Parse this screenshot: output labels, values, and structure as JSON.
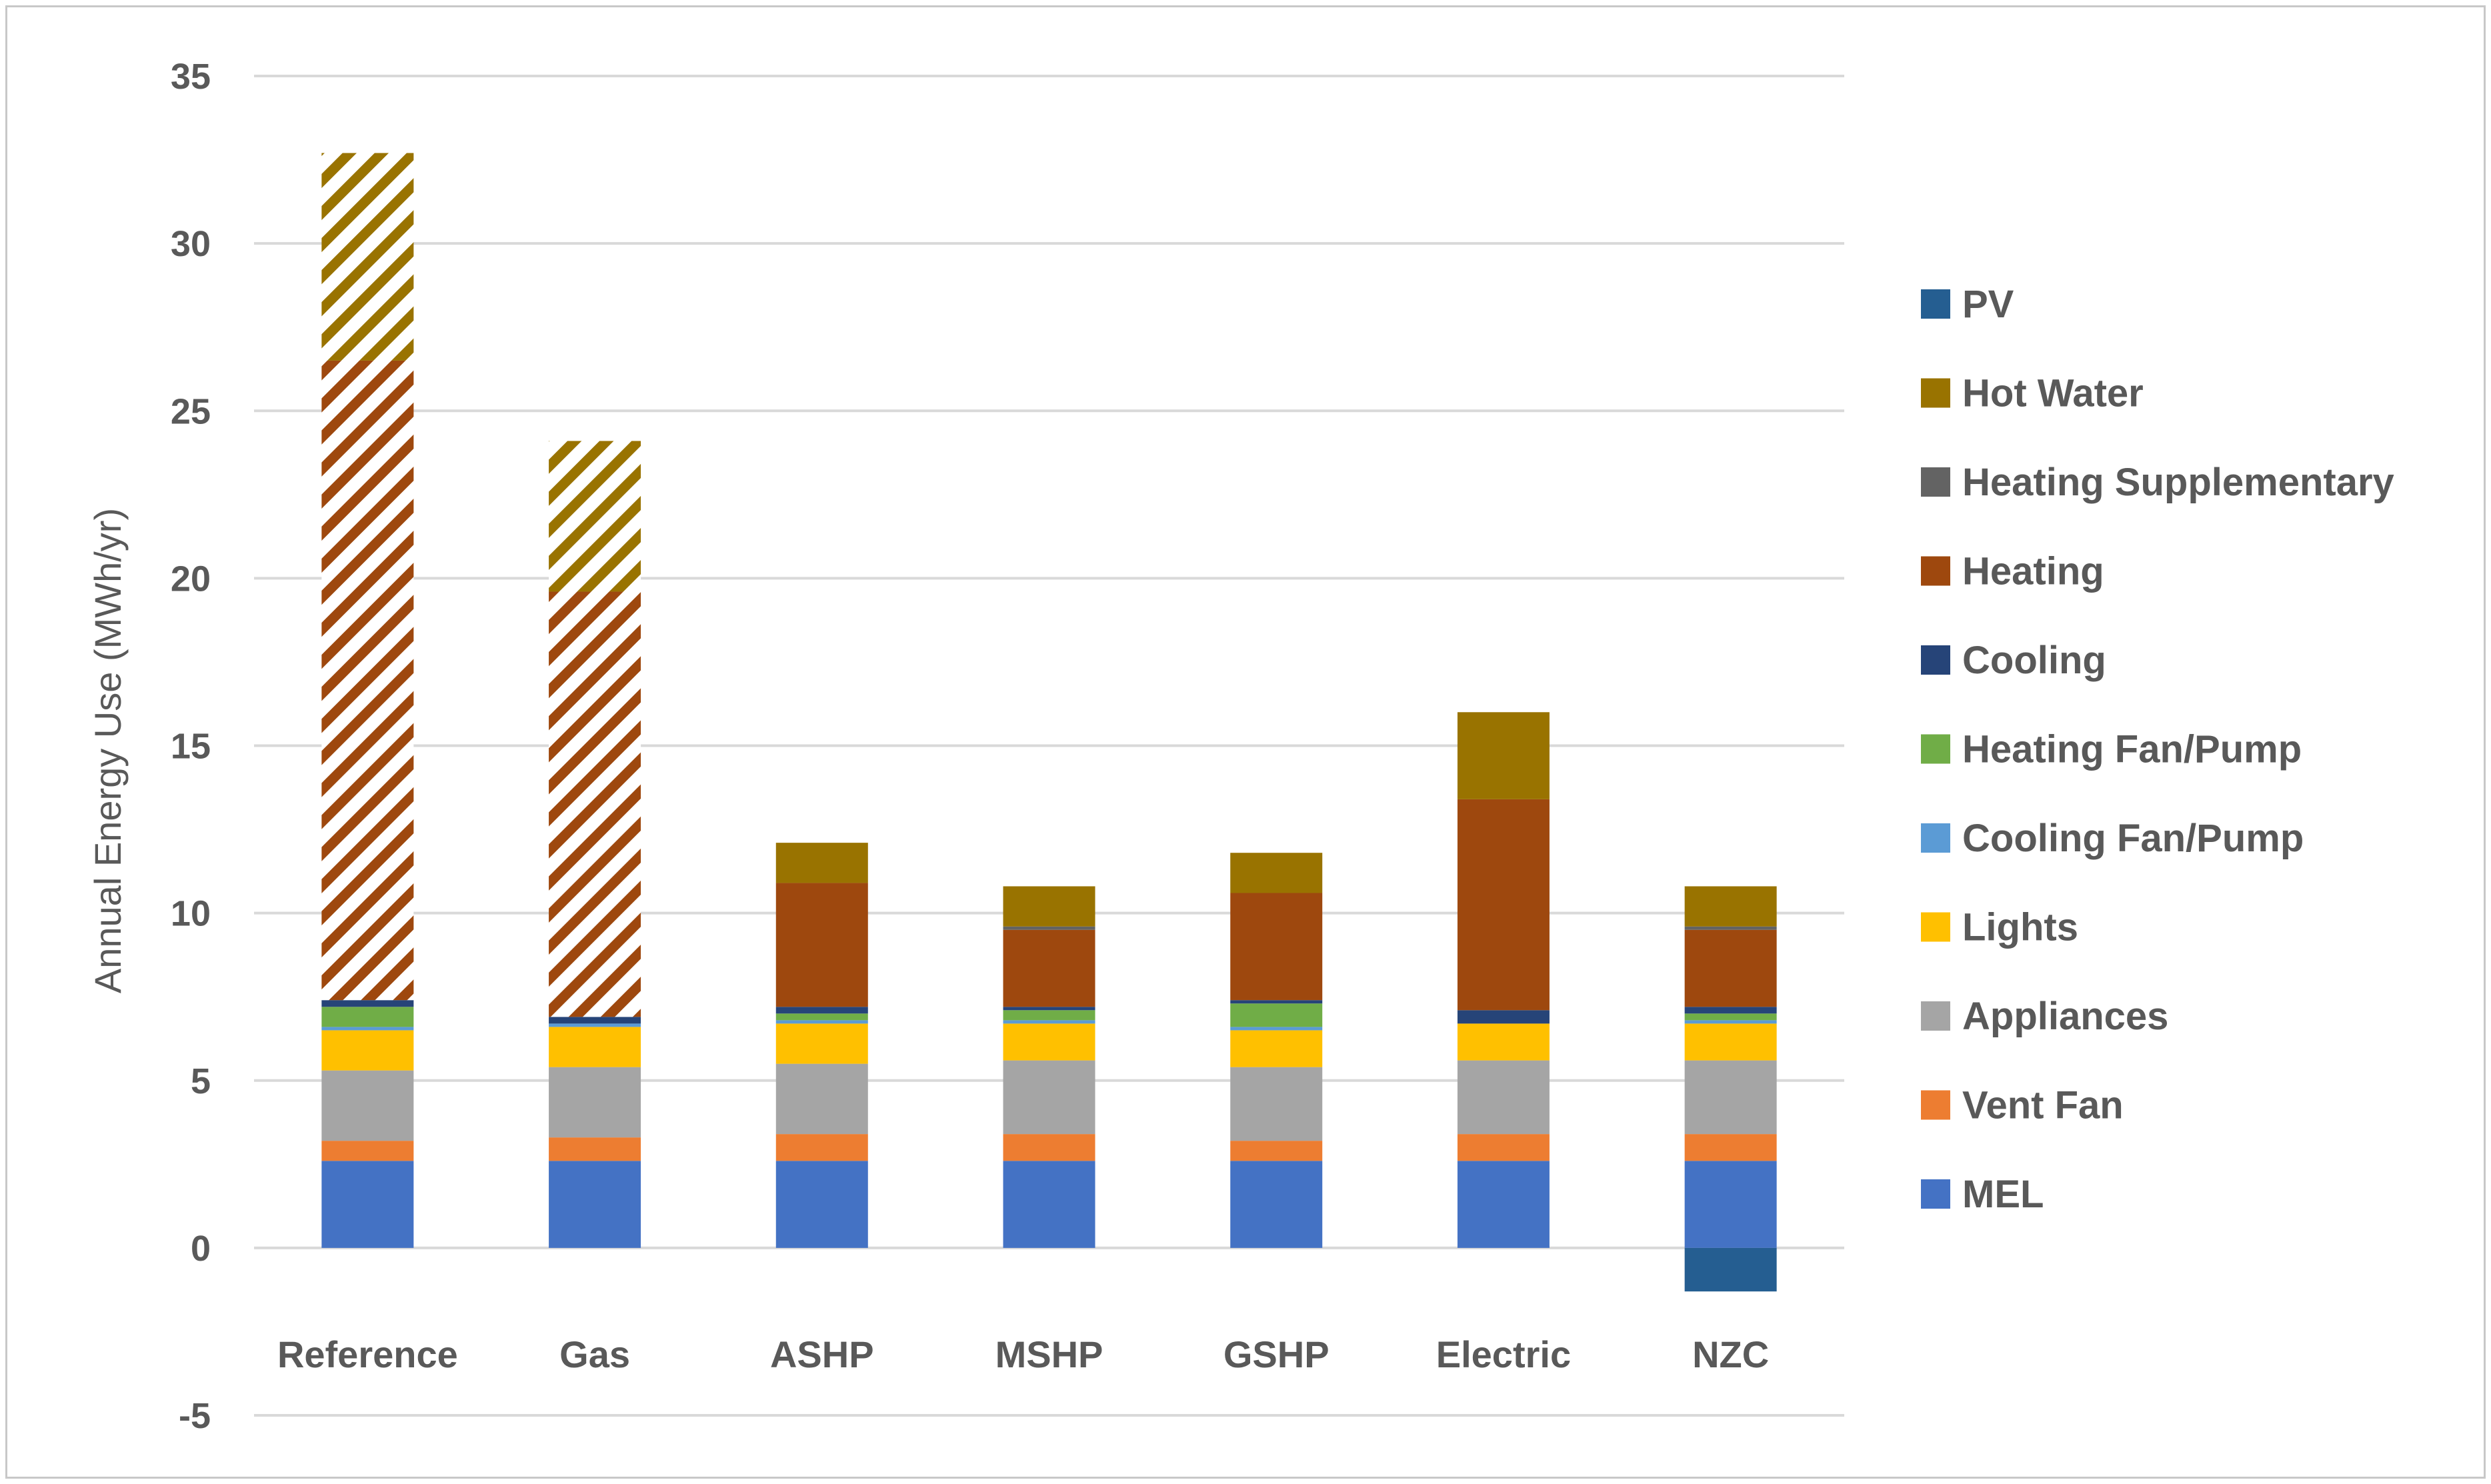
{
  "chart_data": {
    "type": "bar",
    "stacked": true,
    "title": "",
    "xlabel": "",
    "ylabel": "Annual Energy Use (MWh/yr)",
    "ylim": [
      -5,
      35
    ],
    "yticks": [
      35,
      30,
      25,
      20,
      15,
      10,
      5,
      0,
      -5
    ],
    "grid": true,
    "legend_position": "right",
    "categories": [
      "Reference",
      "Gas",
      "ASHP",
      "MSHP",
      "GSHP",
      "Electric",
      "NZC"
    ],
    "series": [
      {
        "name": "MEL",
        "color": "#4472C4",
        "values": [
          2.6,
          2.6,
          2.6,
          2.6,
          2.6,
          2.6,
          2.6
        ]
      },
      {
        "name": "Vent Fan",
        "color": "#ED7D31",
        "values": [
          0.6,
          0.7,
          0.8,
          0.8,
          0.6,
          0.8,
          0.8
        ]
      },
      {
        "name": "Appliances",
        "color": "#A5A5A5",
        "values": [
          2.1,
          2.1,
          2.1,
          2.2,
          2.2,
          2.2,
          2.2
        ]
      },
      {
        "name": "Lights",
        "color": "#FFC000",
        "values": [
          1.2,
          1.2,
          1.2,
          1.1,
          1.1,
          1.1,
          1.1
        ]
      },
      {
        "name": "Cooling Fan/Pump",
        "color": "#5B9BD5",
        "values": [
          0.1,
          0.1,
          0.1,
          0.1,
          0.1,
          0.0,
          0.1
        ]
      },
      {
        "name": "Heating Fan/Pump",
        "color": "#70AD47",
        "values": [
          0.6,
          0.0,
          0.2,
          0.3,
          0.7,
          0.0,
          0.2
        ]
      },
      {
        "name": "Cooling",
        "color": "#264478",
        "values": [
          0.2,
          0.2,
          0.2,
          0.1,
          0.1,
          0.4,
          0.2
        ]
      },
      {
        "name": "Heating",
        "color": "#9E480E",
        "values": [
          19.1,
          12.7,
          3.7,
          2.3,
          3.2,
          6.3,
          2.3
        ],
        "hatched_categories": [
          "Reference",
          "Gas"
        ]
      },
      {
        "name": "Heating Supplementary",
        "color": "#636363",
        "values": [
          0.0,
          0.0,
          0.0,
          0.1,
          0.0,
          0.0,
          0.1
        ]
      },
      {
        "name": "Hot Water",
        "color": "#997300",
        "values": [
          6.2,
          4.5,
          1.2,
          1.2,
          1.2,
          2.6,
          1.2
        ],
        "hatched_categories": [
          "Reference",
          "Gas"
        ]
      },
      {
        "name": "PV",
        "color": "#255E91",
        "values": [
          0,
          0,
          0,
          0,
          0,
          0,
          -1.3
        ]
      }
    ],
    "legend_order": [
      "PV",
      "Hot Water",
      "Heating Supplementary",
      "Heating",
      "Cooling",
      "Heating Fan/Pump",
      "Cooling Fan/Pump",
      "Lights",
      "Appliances",
      "Vent Fan",
      "MEL"
    ]
  }
}
